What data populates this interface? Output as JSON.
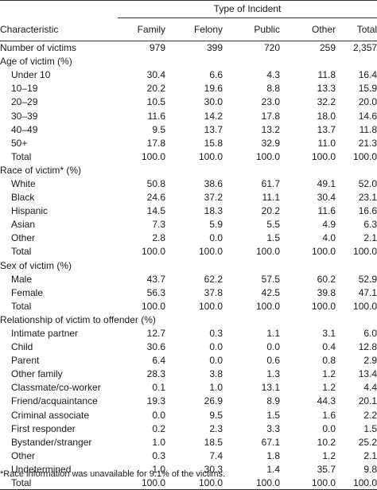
{
  "header": {
    "group_label": "Type of Incident",
    "characteristic_label": "Characteristic",
    "columns": [
      "Family",
      "Felony",
      "Public",
      "Other",
      "Total"
    ]
  },
  "rows": [
    {
      "type": "data",
      "label": "Number of victims",
      "indent": false,
      "values": [
        "979",
        "399",
        "720",
        "259",
        "2,357"
      ]
    },
    {
      "type": "section",
      "label": "Age of victim (%)"
    },
    {
      "type": "data",
      "label": "Under 10",
      "indent": true,
      "values": [
        "30.4",
        "6.6",
        "4.3",
        "11.8",
        "16.4"
      ]
    },
    {
      "type": "data",
      "label": "10–19",
      "indent": true,
      "values": [
        "20.2",
        "19.6",
        "8.8",
        "13.3",
        "15.9"
      ]
    },
    {
      "type": "data",
      "label": "20–29",
      "indent": true,
      "values": [
        "10.5",
        "30.0",
        "23.0",
        "32.2",
        "20.0"
      ]
    },
    {
      "type": "data",
      "label": "30–39",
      "indent": true,
      "values": [
        "11.6",
        "14.2",
        "17.8",
        "18.0",
        "14.6"
      ]
    },
    {
      "type": "data",
      "label": "40–49",
      "indent": true,
      "values": [
        "9.5",
        "13.7",
        "13.2",
        "13.7",
        "11.8"
      ]
    },
    {
      "type": "data",
      "label": "50+",
      "indent": true,
      "values": [
        "17.8",
        "15.8",
        "32.9",
        "11.0",
        "21.3"
      ]
    },
    {
      "type": "data",
      "label": "Total",
      "indent": true,
      "values": [
        "100.0",
        "100.0",
        "100.0",
        "100.0",
        "100.0"
      ]
    },
    {
      "type": "section",
      "label": "Race of victim* (%)"
    },
    {
      "type": "data",
      "label": "White",
      "indent": true,
      "values": [
        "50.8",
        "38.6",
        "61.7",
        "49.1",
        "52.0"
      ]
    },
    {
      "type": "data",
      "label": "Black",
      "indent": true,
      "values": [
        "24.6",
        "37.2",
        "11.1",
        "30.4",
        "23.1"
      ]
    },
    {
      "type": "data",
      "label": "Hispanic",
      "indent": true,
      "values": [
        "14.5",
        "18.3",
        "20.2",
        "11.6",
        "16.6"
      ]
    },
    {
      "type": "data",
      "label": "Asian",
      "indent": true,
      "values": [
        "7.3",
        "5.9",
        "5.5",
        "4.9",
        "6.3"
      ]
    },
    {
      "type": "data",
      "label": "Other",
      "indent": true,
      "values": [
        "2.8",
        "0.0",
        "1.5",
        "4.0",
        "2.1"
      ]
    },
    {
      "type": "data",
      "label": "Total",
      "indent": true,
      "values": [
        "100.0",
        "100.0",
        "100.0",
        "100.0",
        "100.0"
      ]
    },
    {
      "type": "section",
      "label": "Sex of victim (%)"
    },
    {
      "type": "data",
      "label": "Male",
      "indent": true,
      "values": [
        "43.7",
        "62.2",
        "57.5",
        "60.2",
        "52.9"
      ]
    },
    {
      "type": "data",
      "label": "Female",
      "indent": true,
      "values": [
        "56.3",
        "37.8",
        "42.5",
        "39.8",
        "47.1"
      ]
    },
    {
      "type": "data",
      "label": "Total",
      "indent": true,
      "values": [
        "100.0",
        "100.0",
        "100.0",
        "100.0",
        "100.0"
      ]
    },
    {
      "type": "section",
      "label": "Relationship of victim to offender (%)"
    },
    {
      "type": "data",
      "label": "Intimate partner",
      "indent": true,
      "values": [
        "12.7",
        "0.3",
        "1.1",
        "3.1",
        "6.0"
      ]
    },
    {
      "type": "data",
      "label": "Child",
      "indent": true,
      "values": [
        "30.6",
        "0.0",
        "0.0",
        "0.4",
        "12.8"
      ]
    },
    {
      "type": "data",
      "label": "Parent",
      "indent": true,
      "values": [
        "6.4",
        "0.0",
        "0.6",
        "0.8",
        "2.9"
      ]
    },
    {
      "type": "data",
      "label": "Other family",
      "indent": true,
      "values": [
        "28.3",
        "3.8",
        "1.3",
        "1.2",
        "13.4"
      ]
    },
    {
      "type": "data",
      "label": "Classmate/co-worker",
      "indent": true,
      "values": [
        "0.1",
        "1.0",
        "13.1",
        "1.2",
        "4.4"
      ]
    },
    {
      "type": "data",
      "label": "Friend/acquaintance",
      "indent": true,
      "values": [
        "19.3",
        "26.9",
        "8.9",
        "44.3",
        "20.1"
      ]
    },
    {
      "type": "data",
      "label": "Criminal associate",
      "indent": true,
      "values": [
        "0.0",
        "9.5",
        "1.5",
        "1.6",
        "2.2"
      ]
    },
    {
      "type": "data",
      "label": "First responder",
      "indent": true,
      "values": [
        "0.2",
        "2.3",
        "3.3",
        "0.0",
        "1.5"
      ]
    },
    {
      "type": "data",
      "label": "Bystander/stranger",
      "indent": true,
      "values": [
        "1.0",
        "18.5",
        "67.1",
        "10.2",
        "25.2"
      ]
    },
    {
      "type": "data",
      "label": "Other",
      "indent": true,
      "values": [
        "0.3",
        "7.4",
        "1.8",
        "1.2",
        "2.1"
      ]
    },
    {
      "type": "data",
      "label": "Undetermined",
      "indent": true,
      "values": [
        "1.0",
        "30.3",
        "1.4",
        "35.7",
        "9.8"
      ]
    },
    {
      "type": "data",
      "label": "Total",
      "indent": true,
      "values": [
        "100.0",
        "100.0",
        "100.0",
        "100.0",
        "100.0"
      ]
    }
  ],
  "footnote": "*Race information was unavailable for 9.1% of the victims."
}
